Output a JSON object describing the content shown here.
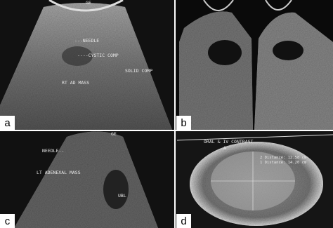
{
  "panels": [
    {
      "label": "a",
      "annotations": [
        "GE",
        "---NEEDLE",
        "----CYSTIC COMP",
        "RT AD MASS",
        "SOLID COMP"
      ]
    },
    {
      "label": "b",
      "annotations": []
    },
    {
      "label": "c",
      "annotations": [
        "GE",
        "NEEDLE--",
        "LT ADENEXAL MASS",
        "UBL"
      ]
    },
    {
      "label": "d",
      "annotations": [
        "ORAL & IV CONTRAST",
        "A",
        "2 Distance: 12.58 cm",
        "1 Distance: 14.20 cm"
      ]
    }
  ]
}
